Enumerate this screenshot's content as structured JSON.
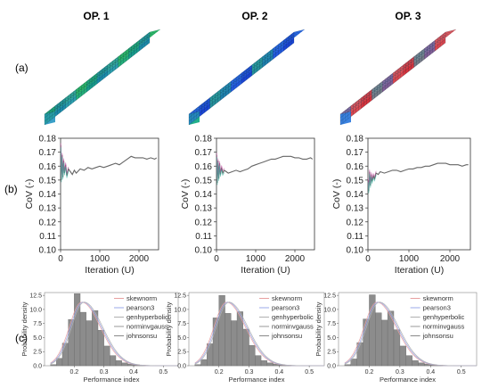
{
  "panel_titles": [
    "OP. 1",
    "OP. 2",
    "OP. 3"
  ],
  "row_labels": [
    "(a)",
    "(b)",
    "(c)"
  ],
  "model_colors": {
    "op1": [
      "#1a9c8c",
      "#2fbf6a",
      "#3aa0c8",
      "#1f7fc4"
    ],
    "op2": [
      "#1b45d6",
      "#2a6ae8",
      "#22b08c",
      "#2fd06a"
    ],
    "op3": [
      "#d7333d",
      "#e35a60",
      "#3a82e0",
      "#22b6c4"
    ]
  },
  "chart_data": [
    {
      "type": "line",
      "panel": "OP. 1",
      "xlabel": "Iteration (U)",
      "ylabel": "CoV (-)",
      "xlim": [
        0,
        2500
      ],
      "ylim": [
        0.1,
        0.18
      ],
      "xticks": [
        0,
        1000,
        2000
      ],
      "yticks": [
        "0.10",
        "0.11",
        "0.12",
        "0.13",
        "0.14",
        "0.15",
        "0.16",
        "0.17",
        "0.18"
      ],
      "x": [
        5,
        20,
        40,
        60,
        80,
        100,
        130,
        160,
        200,
        250,
        300,
        350,
        400,
        500,
        600,
        700,
        800,
        900,
        1000,
        1100,
        1200,
        1300,
        1400,
        1500,
        1600,
        1700,
        1800,
        1900,
        2000,
        2100,
        2200,
        2300,
        2400,
        2450
      ],
      "y": [
        0.175,
        0.15,
        0.168,
        0.152,
        0.164,
        0.155,
        0.161,
        0.153,
        0.158,
        0.156,
        0.154,
        0.157,
        0.155,
        0.158,
        0.157,
        0.159,
        0.158,
        0.159,
        0.16,
        0.159,
        0.16,
        0.161,
        0.162,
        0.161,
        0.163,
        0.165,
        0.167,
        0.166,
        0.166,
        0.166,
        0.165,
        0.166,
        0.165,
        0.166
      ]
    },
    {
      "type": "line",
      "panel": "OP. 2",
      "xlabel": "Iteration (U)",
      "ylabel": "CoV (-)",
      "xlim": [
        0,
        2500
      ],
      "ylim": [
        0.1,
        0.18
      ],
      "xticks": [
        0,
        1000,
        2000
      ],
      "yticks": [
        "0.10",
        "0.11",
        "0.12",
        "0.13",
        "0.14",
        "0.15",
        "0.16",
        "0.17",
        "0.18"
      ],
      "x": [
        5,
        20,
        40,
        60,
        80,
        100,
        130,
        160,
        200,
        250,
        300,
        400,
        500,
        600,
        700,
        800,
        900,
        1000,
        1100,
        1200,
        1300,
        1400,
        1500,
        1600,
        1700,
        1800,
        1900,
        2000,
        2100,
        2200,
        2300,
        2400,
        2450
      ],
      "y": [
        0.168,
        0.148,
        0.164,
        0.151,
        0.162,
        0.154,
        0.159,
        0.155,
        0.157,
        0.156,
        0.155,
        0.156,
        0.157,
        0.156,
        0.157,
        0.158,
        0.16,
        0.161,
        0.162,
        0.163,
        0.164,
        0.165,
        0.165,
        0.166,
        0.167,
        0.167,
        0.167,
        0.166,
        0.166,
        0.165,
        0.165,
        0.166,
        0.165
      ]
    },
    {
      "type": "line",
      "panel": "OP. 3",
      "xlabel": "Iteration (U)",
      "ylabel": "CoV (-)",
      "xlim": [
        0,
        2500
      ],
      "ylim": [
        0.1,
        0.18
      ],
      "xticks": [
        0,
        1000,
        2000
      ],
      "yticks": [
        "0.10",
        "0.11",
        "0.12",
        "0.13",
        "0.14",
        "0.15",
        "0.16",
        "0.17",
        "0.18"
      ],
      "x": [
        5,
        20,
        40,
        60,
        80,
        100,
        130,
        160,
        200,
        250,
        300,
        400,
        500,
        600,
        700,
        800,
        900,
        1000,
        1100,
        1200,
        1300,
        1400,
        1500,
        1600,
        1700,
        1800,
        1900,
        2000,
        2100,
        2200,
        2300,
        2400,
        2450
      ],
      "y": [
        0.15,
        0.142,
        0.156,
        0.146,
        0.154,
        0.149,
        0.153,
        0.151,
        0.155,
        0.154,
        0.156,
        0.155,
        0.156,
        0.157,
        0.157,
        0.156,
        0.157,
        0.158,
        0.158,
        0.159,
        0.159,
        0.16,
        0.16,
        0.161,
        0.162,
        0.162,
        0.162,
        0.161,
        0.161,
        0.161,
        0.16,
        0.161,
        0.161
      ]
    },
    {
      "type": "histogram",
      "panel": "OP. 1",
      "xlabel": "Performance index",
      "ylabel": "Probability density",
      "xlim": [
        0.1,
        0.55
      ],
      "ylim": [
        0,
        13
      ],
      "xticks": [
        "0.2",
        "0.3",
        "0.4",
        "0.5"
      ],
      "yticks": [
        "0.0",
        "2.5",
        "5.0",
        "7.5",
        "10.0",
        "12.5"
      ],
      "bins": [
        0.12,
        0.14,
        0.16,
        0.18,
        0.2,
        0.22,
        0.24,
        0.26,
        0.28,
        0.3,
        0.32,
        0.34,
        0.36,
        0.38,
        0.4,
        0.42,
        0.44
      ],
      "densities": [
        0.2,
        1.3,
        4.0,
        8.2,
        12.8,
        9.5,
        8.0,
        9.8,
        6.3,
        3.5,
        1.8,
        0.9,
        0.5,
        0.3,
        0.15,
        0.08
      ],
      "legend": [
        "skewnorm",
        "pearson3",
        "genhyperbolic",
        "norminvgauss",
        "johnsonsu"
      ]
    },
    {
      "type": "histogram",
      "panel": "OP. 2",
      "xlabel": "Performance index",
      "ylabel": "Probability density",
      "xlim": [
        0.1,
        0.55
      ],
      "ylim": [
        0,
        13
      ],
      "xticks": [
        "0.2",
        "0.3",
        "0.4",
        "0.5"
      ],
      "yticks": [
        "0.0",
        "2.5",
        "5.0",
        "7.5",
        "10.0",
        "12.5"
      ],
      "bins": [
        0.12,
        0.14,
        0.16,
        0.18,
        0.2,
        0.22,
        0.24,
        0.26,
        0.28,
        0.3,
        0.32,
        0.34,
        0.36,
        0.38,
        0.4,
        0.42,
        0.44
      ],
      "densities": [
        0.2,
        1.1,
        3.9,
        8.5,
        12.5,
        9.3,
        8.0,
        9.6,
        6.5,
        3.6,
        1.8,
        0.9,
        0.5,
        0.3,
        0.15,
        0.08
      ],
      "legend": [
        "skewnorm",
        "pearson3",
        "genhyperbolic",
        "norminvgauss",
        "johnsonsu"
      ]
    },
    {
      "type": "histogram",
      "panel": "OP. 3",
      "xlabel": "Performance index",
      "ylabel": "Probability density",
      "xlim": [
        0.1,
        0.55
      ],
      "ylim": [
        0,
        13
      ],
      "xticks": [
        "0.2",
        "0.3",
        "0.4",
        "0.5"
      ],
      "yticks": [
        "0.0",
        "2.5",
        "5.0",
        "7.5",
        "10.0",
        "12.5"
      ],
      "bins": [
        0.12,
        0.14,
        0.16,
        0.18,
        0.2,
        0.22,
        0.24,
        0.26,
        0.28,
        0.3,
        0.32,
        0.34,
        0.36,
        0.38,
        0.4,
        0.42,
        0.44
      ],
      "densities": [
        0.2,
        1.2,
        4.1,
        8.3,
        12.6,
        9.4,
        8.1,
        9.7,
        6.4,
        3.5,
        1.8,
        0.9,
        0.5,
        0.3,
        0.15,
        0.08
      ],
      "legend": [
        "skewnorm",
        "pearson3",
        "genhyperbolic",
        "norminvgauss",
        "johnsonsu"
      ]
    }
  ],
  "legend_colors": [
    "#e8a0a0",
    "#9aa8e8",
    "#b0b0b0",
    "#9a9a9a",
    "#8a8a8a"
  ]
}
